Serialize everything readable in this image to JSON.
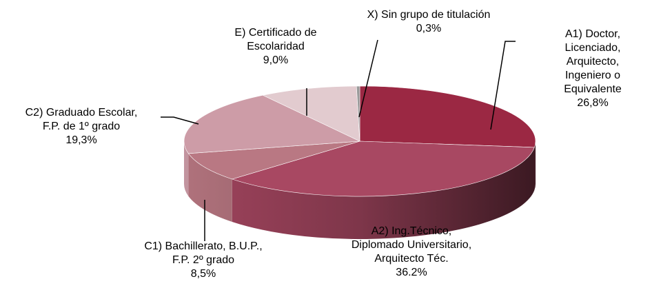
{
  "chart_data": {
    "type": "pie3d",
    "categories": [
      "A1) Doctor, Licenciado,\nArquitecto, Ingeniero o\nEquivalente",
      "A2) Ing.Técnico,\nDiplomado Universitario,\nArquitecto Téc.",
      "C1) Bachillerato, B.U.P.,\nF.P. 2º grado",
      "C2) Graduado Escolar,\nF.P. de 1º grado",
      "E) Certificado de\nEscolaridad",
      "X) Sin grupo de titulación"
    ],
    "values": [
      26.8,
      36.2,
      8.5,
      19.3,
      9.0,
      0.3
    ],
    "value_labels": [
      "26,8%",
      "36.2%",
      "8,5%",
      "19,3%",
      "9,0%",
      "0,3%"
    ],
    "colors": [
      "#9b2843",
      "#a84862",
      "#b97883",
      "#cd9ca7",
      "#e2cbcf",
      "#9a9a9a"
    ]
  }
}
